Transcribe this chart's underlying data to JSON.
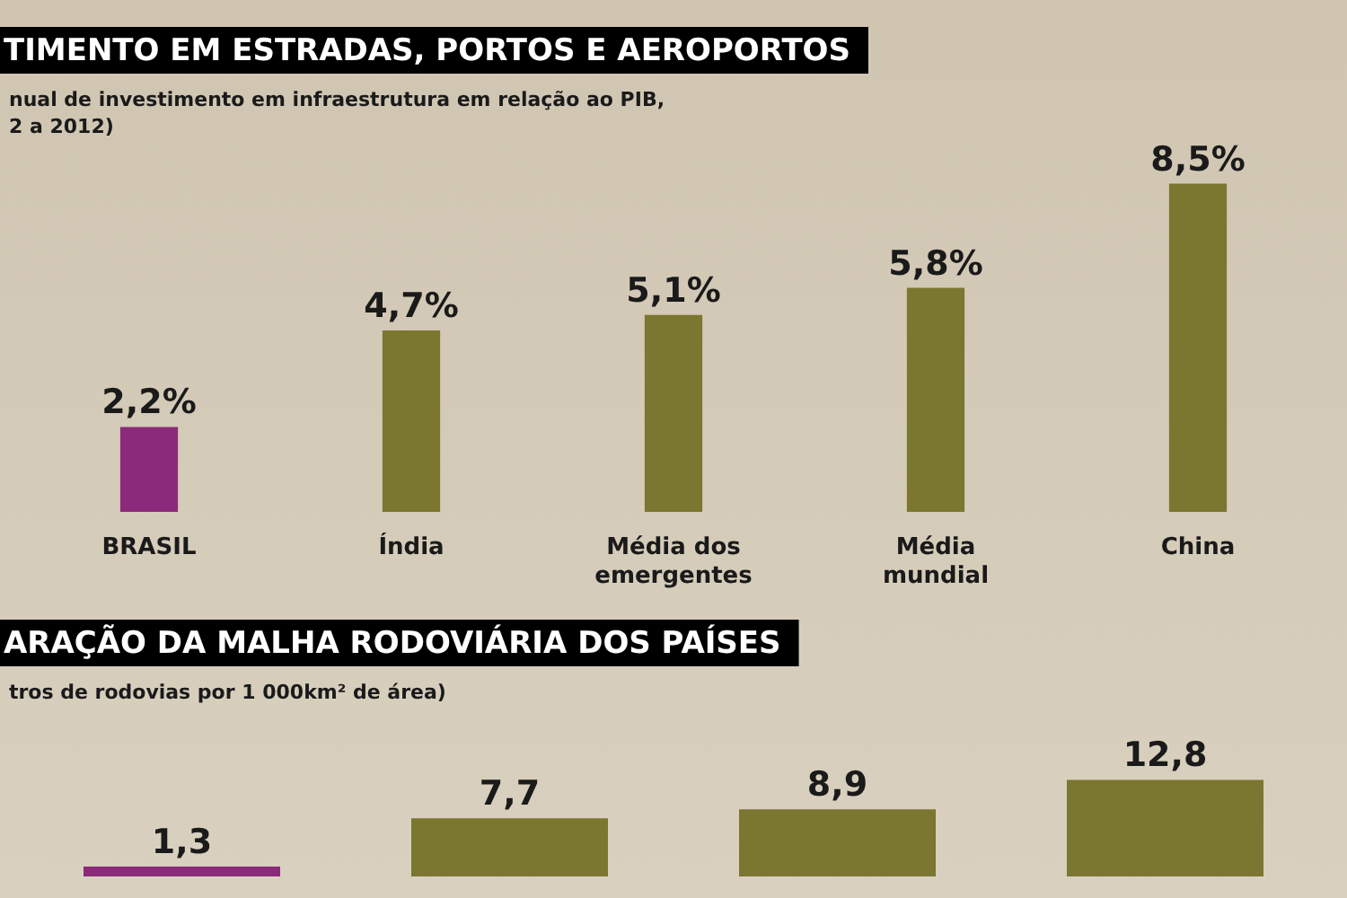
{
  "chart_data": [
    {
      "type": "bar",
      "title": "TIMENTO EM ESTRADAS, PORTOS E AEROPORTOS",
      "subtitle": "nual de investimento em infraestrutura em relação ao PIB,\n2 a 2012)",
      "categories": [
        "BRASIL",
        "Índia",
        "Média dos\nemergentes",
        "Média\nmundial",
        "China"
      ],
      "values": [
        2.2,
        4.7,
        5.1,
        5.8,
        8.5
      ],
      "value_labels": [
        "2,2%",
        "4,7%",
        "5,1%",
        "5,8%",
        "8,5%"
      ],
      "colors": [
        "#8b2a7a",
        "#7b7630",
        "#7b7630",
        "#7b7630",
        "#7b7630"
      ]
    },
    {
      "type": "bar",
      "title": "ARAÇÃO DA MALHA RODOVIÁRIA DOS PAÍSES",
      "subtitle": "tros de rodovias por 1 000km² de área)",
      "categories": [
        null,
        null,
        null,
        null
      ],
      "values": [
        1.3,
        7.7,
        8.9,
        12.8
      ],
      "value_labels": [
        "1,3",
        "7,7",
        "8,9",
        "12,8"
      ],
      "colors": [
        "#8b2a7a",
        "#7b7630",
        "#7b7630",
        "#7b7630"
      ]
    }
  ]
}
